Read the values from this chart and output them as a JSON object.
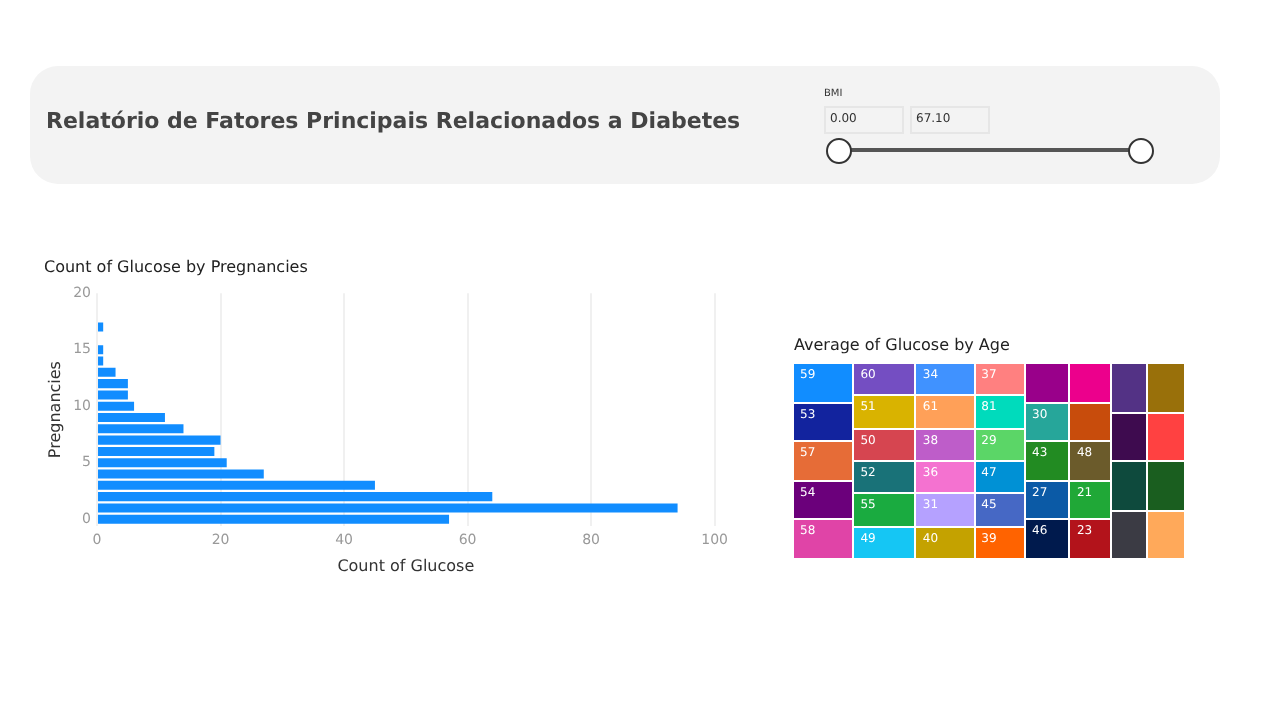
{
  "chart_data": [
    {
      "type": "other",
      "title": "Relatório de Fatores Principais Relacionados a Diabetes",
      "annotations": [
        "BMI",
        "0.00",
        "67.10"
      ]
    },
    {
      "type": "bar",
      "orientation": "horizontal",
      "title": "Count of Glucose by Pregnancies",
      "xlabel": "Count of Glucose",
      "ylabel": "Pregnancies",
      "x": [
        0,
        1,
        2,
        3,
        4,
        5,
        6,
        7,
        8,
        9,
        10,
        11,
        12,
        13,
        14,
        15,
        17
      ],
      "values": [
        57,
        94,
        64,
        45,
        27,
        21,
        19,
        20,
        14,
        11,
        6,
        5,
        5,
        3,
        1,
        1,
        1
      ],
      "color": "#118dff",
      "xlim": [
        0,
        100
      ],
      "xticks": [
        0,
        20,
        40,
        60,
        80,
        100
      ],
      "ylim": [
        -0.6,
        20
      ],
      "yticks": [
        0,
        5,
        10,
        15,
        20
      ],
      "grid": "x",
      "legend": false
    },
    {
      "type": "other",
      "title": "Average of Glucose by Age",
      "categories": [
        "59",
        "53",
        "57",
        "54",
        "58",
        "60",
        "51",
        "50",
        "52",
        "55",
        "49",
        "34",
        "61",
        "38",
        "36",
        "31",
        "40",
        "37",
        "81",
        "29",
        "47",
        "45",
        "39",
        null,
        "30",
        "43",
        "27",
        "46",
        null,
        null,
        "48",
        "21",
        "23",
        null,
        null,
        null,
        null,
        null,
        null,
        null,
        null
      ],
      "colors": [
        "#118dff",
        "#12239e",
        "#e66c37",
        "#6b007b",
        "#e044a7",
        "#744ec2",
        "#d9b300",
        "#d64550",
        "#197278",
        "#1aab40",
        "#15c6f4",
        "#4092ff",
        "#ffa058",
        "#be5dc9",
        "#f472d0",
        "#b5a1ff",
        "#c4a200",
        "#ff8080",
        "#00dbbc",
        "#5bd667",
        "#0091d5",
        "#4668c5",
        "#ff6300",
        "#99008a",
        "#26a69a",
        "#228b22",
        "#0b5aa6",
        "#001a4d",
        "#ec008c",
        "#c84c0c",
        "#6b5b2b",
        "#20a837",
        "#b3131b",
        "#533285",
        "#3e0b4f",
        "#0e4a3d",
        "#3b3b44",
        "#99700a",
        "#ff4141",
        "#1a5e1f",
        "#ffa95a"
      ]
    }
  ]
}
